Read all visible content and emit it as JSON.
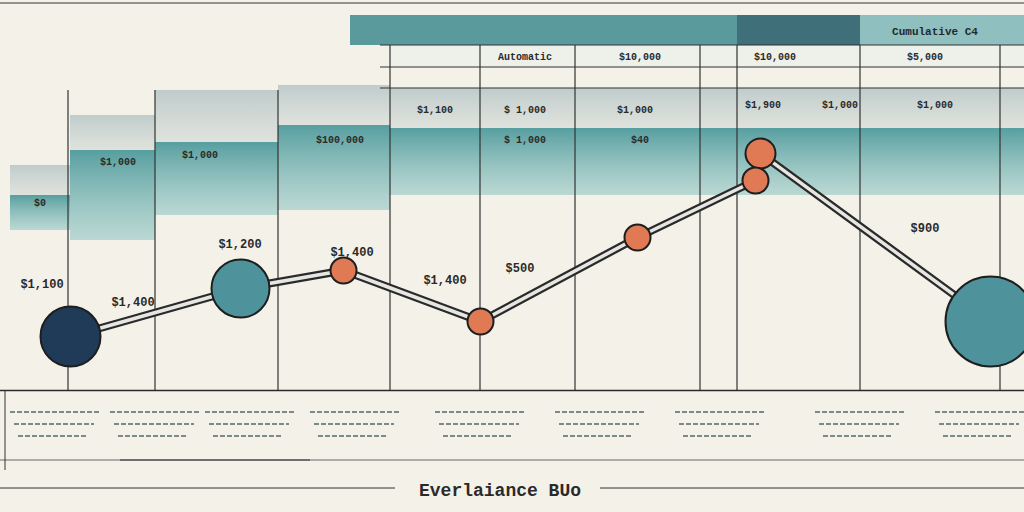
{
  "chart_data": {
    "type": "line",
    "title": "Everlaiance BUo",
    "x": [
      70,
      240,
      343,
      480,
      637,
      755,
      760,
      990
    ],
    "values": [
      18,
      34,
      40,
      23,
      51,
      70,
      79,
      23
    ],
    "colors": [
      "#1f3b57",
      "#4e929b",
      "#e07a55",
      "#e07a55",
      "#e07a55",
      "#e07a55",
      "#e07a55",
      "#4e929b"
    ],
    "xlim": [
      0,
      1024
    ],
    "ylim": [
      0,
      100
    ],
    "tick_labels": false,
    "grid": false,
    "annotations": [
      "$1,100",
      "$1,400",
      "$1,200",
      "$1,400",
      "$1,400",
      "$500",
      "$900"
    ],
    "table": {
      "header": "Cumulative C4",
      "rows": [
        [
          "Automatic",
          "$10,000",
          "$10,000",
          "$5,000"
        ],
        [
          "$1,100",
          "$ 1,000",
          "$1,000",
          "$1,900",
          "$1,000",
          "$1,000"
        ],
        [
          "$100,000",
          "$ 1,000",
          "$40",
          "$1,000",
          "$1,000",
          "$0"
        ]
      ]
    }
  }
}
